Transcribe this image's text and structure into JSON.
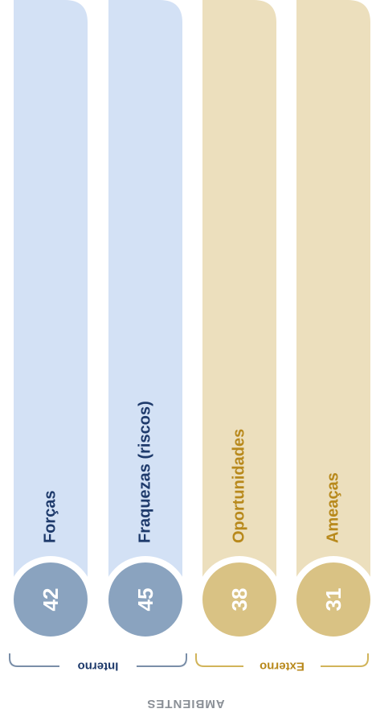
{
  "chart_data": {
    "type": "bar",
    "orientation": "vertical-rotated",
    "categories": [
      "Forças",
      "Fraquezas (riscos)",
      "Oportunidades",
      "Ameaças"
    ],
    "values": [
      42,
      45,
      38,
      31
    ],
    "groups": [
      {
        "label": "Interno",
        "categories": [
          "Forças",
          "Fraquezas (riscos)"
        ]
      },
      {
        "label": "Externo",
        "categories": [
          "Oportunidades",
          "Ameaças"
        ]
      }
    ],
    "axis_title": "AMBIENTES",
    "colors": {
      "internal_bar": "#d3e1f5",
      "internal_circle": "#8aa3bf",
      "internal_text": "#1e3a6b",
      "internal_bracket": "#7a8ea8",
      "external_bar": "#ecdfbd",
      "external_circle": "#d9c284",
      "external_text": "#b8891c",
      "external_bracket": "#d1b45a"
    },
    "grid": false,
    "legend": "none"
  }
}
